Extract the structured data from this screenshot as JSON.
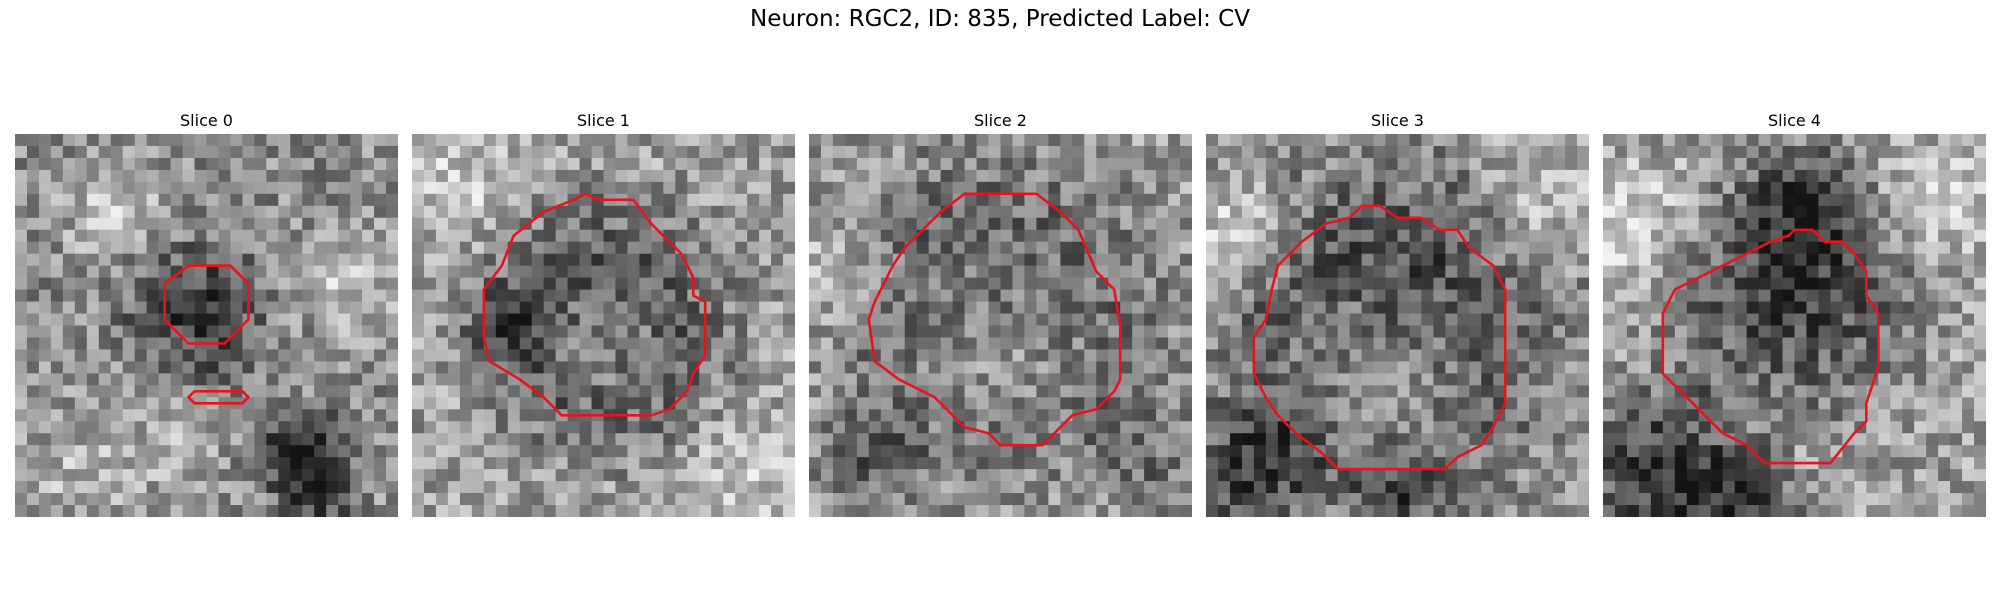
{
  "figure": {
    "title": "Neuron: RGC2, ID: 835, Predicted Label: CV"
  },
  "colors": {
    "contour": "#e8141c",
    "background": "#ffffff"
  },
  "panels": [
    {
      "title": "Slice 0"
    },
    {
      "title": "Slice 1"
    },
    {
      "title": "Slice 2"
    },
    {
      "title": "Slice 3"
    },
    {
      "title": "Slice 4"
    }
  ]
}
